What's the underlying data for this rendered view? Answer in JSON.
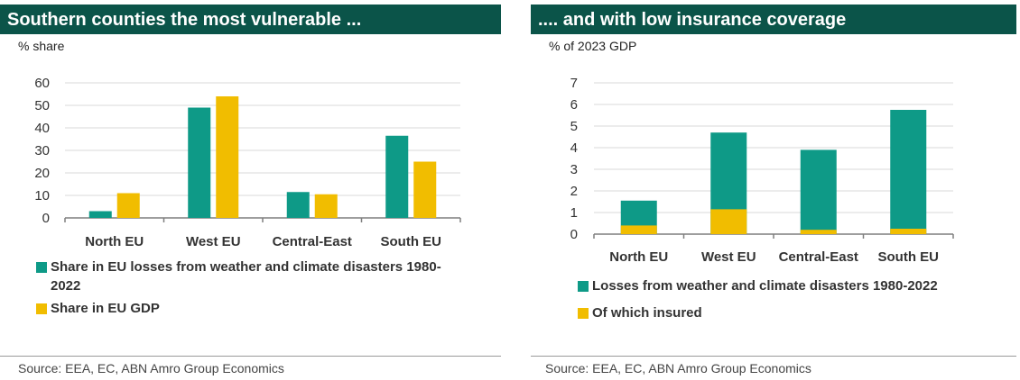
{
  "colors": {
    "teal": "#0e9a87",
    "gold": "#f1bd00",
    "header": "#0b5449",
    "grid": "#d9d9d9",
    "axis": "#7f7f7f"
  },
  "left": {
    "title": "Southern counties the most vulnerable ...",
    "unit": "% share",
    "legend": [
      {
        "label_line1": "Share in EU losses from weather and climate disasters 1980-",
        "label_line2": "2022",
        "color": "#0e9a87"
      },
      {
        "label_line1": "Share in EU GDP",
        "label_line2": "",
        "color": "#f1bd00"
      }
    ],
    "source": "Source: EEA, EC, ABN Amro Group Economics"
  },
  "right": {
    "title": ".... and with low insurance coverage",
    "unit": "% of 2023 GDP",
    "legend": [
      {
        "label_line1": "Losses from weather and climate disasters 1980-2022",
        "label_line2": "",
        "color": "#0e9a87"
      },
      {
        "label_line1": "Of which insured",
        "label_line2": "",
        "color": "#f1bd00"
      }
    ],
    "source": "Source: EEA, EC, ABN Amro Group Economics"
  },
  "chart_data": [
    {
      "type": "bar",
      "title": "Southern counties the most vulnerable ...",
      "ylabel": "% share",
      "categories": [
        "North EU",
        "West EU",
        "Central-East",
        "South EU"
      ],
      "series": [
        {
          "name": "Share in EU losses from weather and climate disasters 1980-2022",
          "values": [
            3,
            49,
            11.5,
            36.5
          ],
          "color": "#0e9a87"
        },
        {
          "name": "Share in EU GDP",
          "values": [
            11,
            54,
            10.5,
            25
          ],
          "color": "#f1bd00"
        }
      ],
      "ylim": [
        0,
        60
      ],
      "yticks": [
        0,
        10,
        20,
        30,
        40,
        50,
        60
      ],
      "grid": true,
      "legend": "bottom"
    },
    {
      "type": "bar",
      "stacked": true,
      "title": ".... and with low insurance coverage",
      "ylabel": "% of 2023 GDP",
      "categories": [
        "North EU",
        "West EU",
        "Central-East",
        "South EU"
      ],
      "series": [
        {
          "name": "Losses from weather and climate disasters 1980-2022",
          "values": [
            1.55,
            4.7,
            3.9,
            5.75
          ],
          "color": "#0e9a87"
        },
        {
          "name": "Of which insured",
          "values": [
            0.4,
            1.15,
            0.2,
            0.25
          ],
          "color": "#f1bd00"
        }
      ],
      "ylim": [
        0,
        7
      ],
      "yticks": [
        0,
        1,
        2,
        3,
        4,
        5,
        6,
        7
      ],
      "grid": true,
      "legend": "bottom"
    }
  ]
}
